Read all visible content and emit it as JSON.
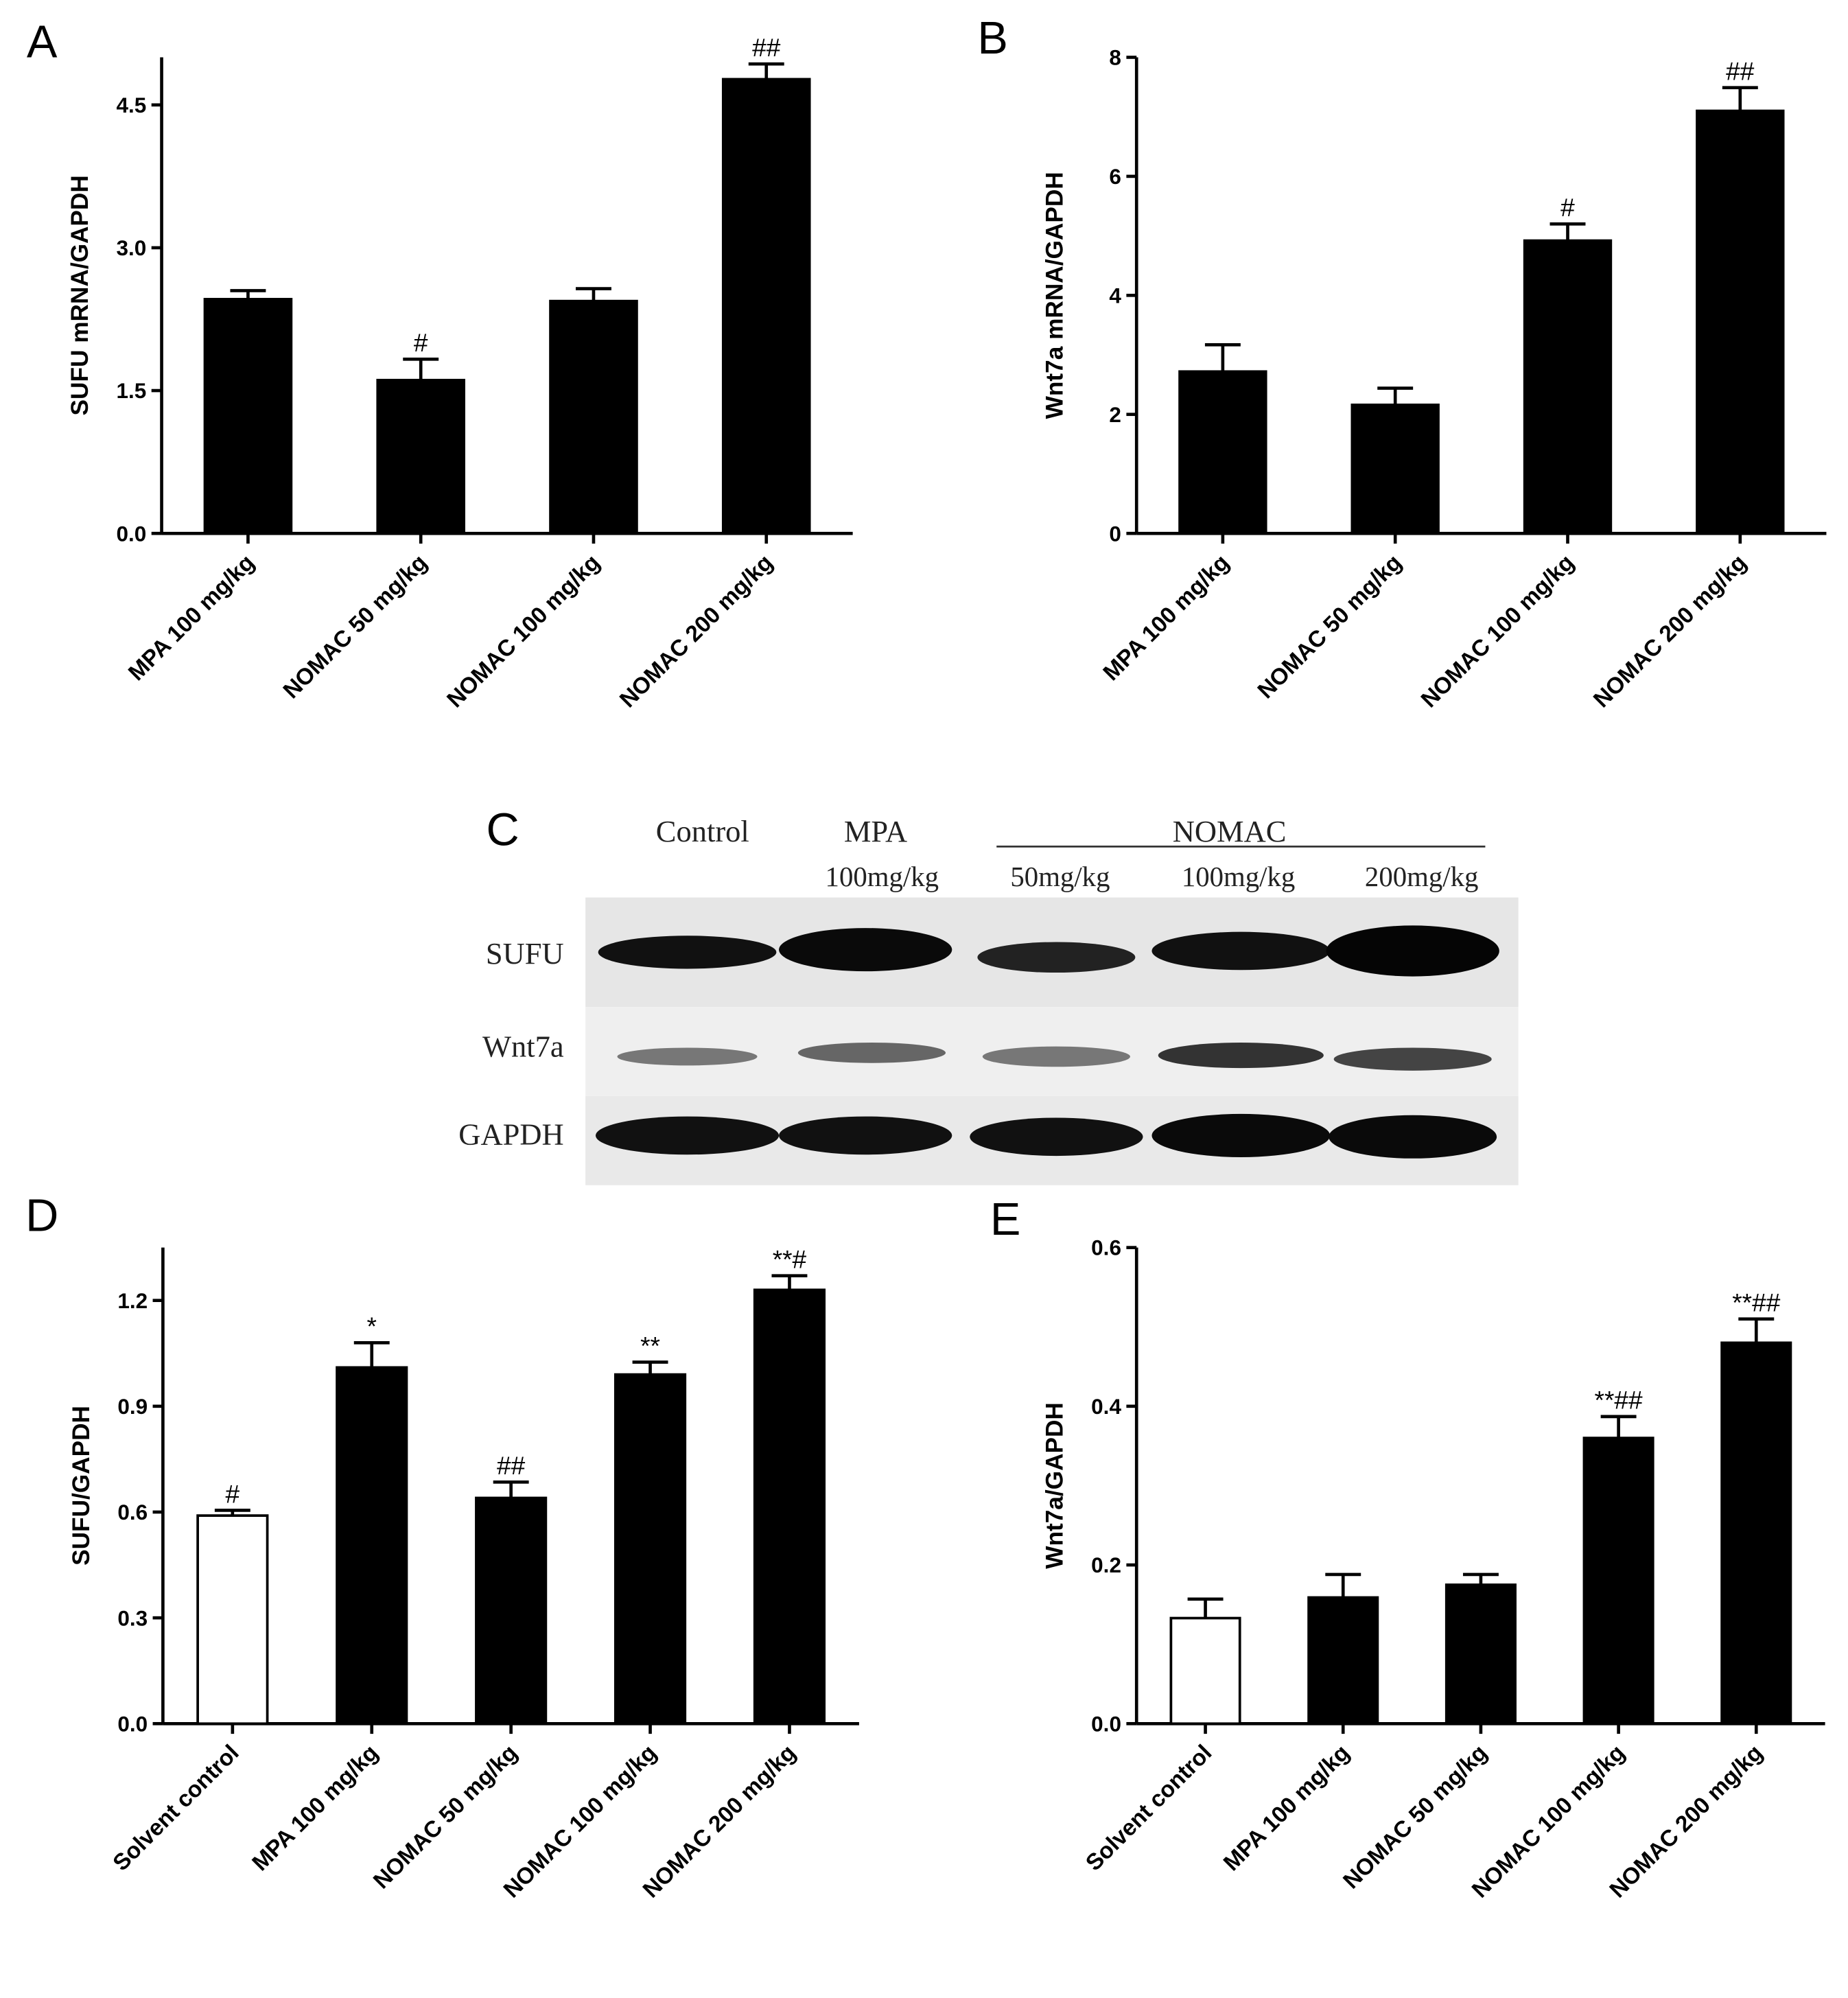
{
  "chart_data": [
    {
      "type": "bar",
      "panel": "A",
      "ylabel": "SUFU mRNA/GAPDH",
      "categories": [
        "MPA 100 mg/kg",
        "NOMAC 50 mg/kg",
        "NOMAC 100 mg/kg",
        "NOMAC 200 mg/kg"
      ],
      "values": [
        2.46,
        1.61,
        2.44,
        4.77
      ],
      "errors": [
        0.09,
        0.22,
        0.13,
        0.16
      ],
      "colors": [
        "#000000",
        "#000000",
        "#000000",
        "#000000"
      ],
      "annotations": [
        null,
        "#",
        null,
        "##"
      ],
      "ylim": [
        0,
        5
      ],
      "yticks": [
        {
          "value": 0,
          "label": "0.0"
        },
        {
          "value": 1.5,
          "label": "1.5"
        },
        {
          "value": 3,
          "label": "3.0"
        },
        {
          "value": 4.5,
          "label": "4.5"
        }
      ]
    },
    {
      "type": "bar",
      "panel": "B",
      "ylabel": "Wnt7a mRNA/GAPDH",
      "categories": [
        "MPA 100 mg/kg",
        "NOMAC 50 mg/kg",
        "NOMAC 100 mg/kg",
        "NOMAC 200 mg/kg"
      ],
      "values": [
        2.72,
        2.16,
        4.92,
        7.1
      ],
      "errors": [
        0.45,
        0.28,
        0.28,
        0.39
      ],
      "colors": [
        "#000000",
        "#000000",
        "#000000",
        "#000000"
      ],
      "annotations": [
        null,
        null,
        "#",
        "##"
      ],
      "ylim": [
        0,
        8
      ],
      "yticks": [
        0,
        2,
        4,
        6,
        8
      ]
    },
    {
      "type": "bar",
      "panel": "D",
      "ylabel": "SUFU/GAPDH",
      "categories": [
        "Solvent control",
        "MPA 100 mg/kg",
        "NOMAC 50 mg/kg",
        "NOMAC 100 mg/kg",
        "NOMAC 200 mg/kg"
      ],
      "values": [
        0.59,
        1.01,
        0.64,
        0.99,
        1.23
      ],
      "errors": [
        0.015,
        0.07,
        0.045,
        0.035,
        0.04
      ],
      "colors": [
        "#ffffff",
        "#000000",
        "#000000",
        "#000000",
        "#000000"
      ],
      "annotations": [
        "#",
        "*",
        "##",
        "**",
        "**#"
      ],
      "ylim": [
        0,
        1.35
      ],
      "yticks": [
        {
          "value": 0,
          "label": "0.0"
        },
        {
          "value": 0.3,
          "label": "0.3"
        },
        {
          "value": 0.6,
          "label": "0.6"
        },
        {
          "value": 0.9,
          "label": "0.9"
        },
        {
          "value": 1.2,
          "label": "1.2"
        }
      ]
    },
    {
      "type": "bar",
      "panel": "E",
      "ylabel": "Wnt7a/GAPDH",
      "categories": [
        "Solvent control",
        "MPA 100 mg/kg",
        "NOMAC 50 mg/kg",
        "NOMAC 100 mg/kg",
        "NOMAC 200 mg/kg"
      ],
      "values": [
        0.133,
        0.159,
        0.175,
        0.36,
        0.48
      ],
      "errors": [
        0.024,
        0.029,
        0.013,
        0.027,
        0.03
      ],
      "colors": [
        "#ffffff",
        "#000000",
        "#000000",
        "#000000",
        "#000000"
      ],
      "annotations": [
        null,
        null,
        null,
        "**##",
        "**##"
      ],
      "ylim": [
        0,
        0.6
      ],
      "yticks": [
        {
          "value": 0,
          "label": "0.0"
        },
        {
          "value": 0.2,
          "label": "0.2"
        },
        {
          "value": 0.4,
          "label": "0.4"
        },
        {
          "value": 0.6,
          "label": "0.6"
        }
      ]
    }
  ],
  "blot": {
    "panel": "C",
    "groups": [
      "Control",
      "MPA",
      "NOMAC"
    ],
    "doses": [
      "100mg/kg",
      "50mg/kg",
      "100mg/kg",
      "200mg/kg"
    ],
    "rows": [
      "SUFU",
      "Wnt7a",
      "GAPDH"
    ]
  }
}
